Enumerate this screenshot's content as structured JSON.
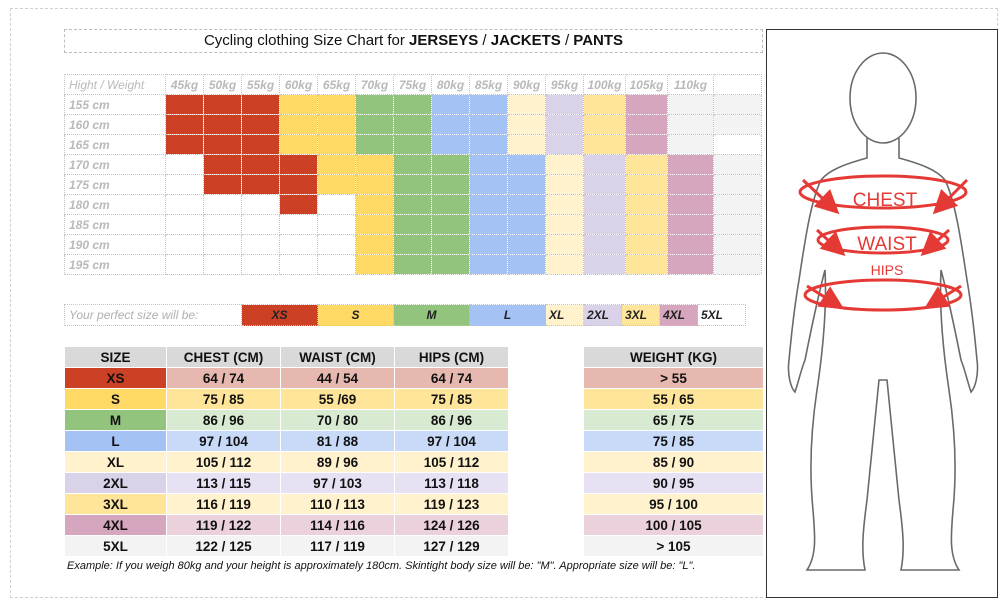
{
  "title": {
    "prefix": "Cycling clothing Size Chart for ",
    "w1": "JERSEYS",
    "sep1": " / ",
    "w2": "JACKETS",
    "sep2": " / ",
    "w3": "PANTS"
  },
  "grid": {
    "corner": "Hight / Weight",
    "weights": [
      "45kg",
      "50kg",
      "55kg",
      "60kg",
      "65kg",
      "70kg",
      "75kg",
      "80kg",
      "85kg",
      "90kg",
      "95kg",
      "100kg",
      "105kg",
      "110kg",
      ""
    ],
    "heights": [
      "155 cm",
      "160 cm",
      "165 cm",
      "170 cm",
      "175 cm",
      "180 cm",
      "185 cm",
      "190 cm",
      "195 cm"
    ],
    "cells": [
      [
        "XS",
        "XS",
        "XS",
        "S",
        "S",
        "M",
        "M",
        "L",
        "L",
        "XL",
        "2XL",
        "3XL",
        "4XL",
        "5XL",
        "5XL"
      ],
      [
        "XS",
        "XS",
        "XS",
        "S",
        "S",
        "M",
        "M",
        "L",
        "L",
        "XL",
        "2XL",
        "3XL",
        "4XL",
        "5XL",
        "5XL"
      ],
      [
        "XS",
        "XS",
        "XS",
        "S",
        "S",
        "M",
        "M",
        "L",
        "L",
        "XL",
        "2XL",
        "3XL",
        "4XL",
        "5XL",
        ""
      ],
      [
        "",
        "XS",
        "XS",
        "XS",
        "S",
        "S",
        "M",
        "M",
        "L",
        "L",
        "XL",
        "2XL",
        "3XL",
        "4XL",
        "5XL"
      ],
      [
        "",
        "XS",
        "XS",
        "XS",
        "S",
        "S",
        "M",
        "M",
        "L",
        "L",
        "XL",
        "2XL",
        "3XL",
        "4XL",
        "5XL"
      ],
      [
        "",
        "",
        "",
        "XS",
        "",
        "S",
        "M",
        "M",
        "L",
        "L",
        "XL",
        "2XL",
        "3XL",
        "4XL",
        "5XL"
      ],
      [
        "",
        "",
        "",
        "",
        "",
        "S",
        "M",
        "M",
        "L",
        "L",
        "XL",
        "2XL",
        "3XL",
        "4XL",
        "5XL"
      ],
      [
        "",
        "",
        "",
        "",
        "",
        "S",
        "M",
        "M",
        "L",
        "L",
        "XL",
        "2XL",
        "3XL",
        "4XL",
        "5XL"
      ],
      [
        "",
        "",
        "",
        "",
        "",
        "S",
        "M",
        "M",
        "L",
        "L",
        "XL",
        "2XL",
        "3XL",
        "4XL",
        "5XL"
      ]
    ]
  },
  "perfect": {
    "label": "Your perfect size will be:",
    "sizes": [
      "XS",
      "S",
      "M",
      "L",
      "XL",
      "2XL",
      "3XL",
      "4XL",
      "5XL"
    ]
  },
  "colors": {
    "XS": "#cc4125",
    "S": "#ffd966",
    "M": "#93c47d",
    "L": "#a4c2f4",
    "XL": "#fff2cc",
    "2XL": "#d9d2e9",
    "3XL": "#ffe599",
    "4XL": "#d5a6bd",
    "5XL": "#f3f3f3"
  },
  "light_colors": {
    "XS": "#e6b8af",
    "S": "#ffe599",
    "M": "#d9ead3",
    "L": "#c9daf8",
    "XL": "#fff2cc",
    "2XL": "#e8e1f4",
    "3XL": "#fff2cc",
    "4XL": "#ead1dc",
    "5XL": "#f3f3f3"
  },
  "measurements": {
    "headers": [
      "SIZE",
      "CHEST (CM)",
      "WAIST (CM)",
      "HIPS (CM)"
    ],
    "rows": [
      [
        "XS",
        "64 / 74",
        "44 / 54",
        "64 / 74"
      ],
      [
        "S",
        "75 / 85",
        "55 /69",
        "75 / 85"
      ],
      [
        "M",
        "86 / 96",
        "70 / 80",
        "86 / 96"
      ],
      [
        "L",
        "97 / 104",
        "81 / 88",
        "97 / 104"
      ],
      [
        "XL",
        "105 / 112",
        "89 / 96",
        "105 / 112"
      ],
      [
        "2XL",
        "113 / 115",
        "97 / 103",
        "113 / 118"
      ],
      [
        "3XL",
        "116 / 119",
        "110 / 113",
        "119 / 123"
      ],
      [
        "4XL",
        "119 / 122",
        "114 / 116",
        "124 / 126"
      ],
      [
        "5XL",
        "122 / 125",
        "117 / 119",
        "127 / 129"
      ]
    ]
  },
  "weight": {
    "header": "WEIGHT (KG)",
    "rows": [
      "> 55",
      "55 / 65",
      "65 / 75",
      "75 / 85",
      "85 / 90",
      "90 / 95",
      "95 / 100",
      "100 / 105",
      "> 105"
    ]
  },
  "example": "Example: If you weigh 80kg and your height is approximately 180cm. Skintight body size will be: \"M\". Appropriate size will be: \"L\".",
  "figure": {
    "chest": "CHEST",
    "waist": "WAIST",
    "hips": "HIPS",
    "accent": "#e53935"
  }
}
